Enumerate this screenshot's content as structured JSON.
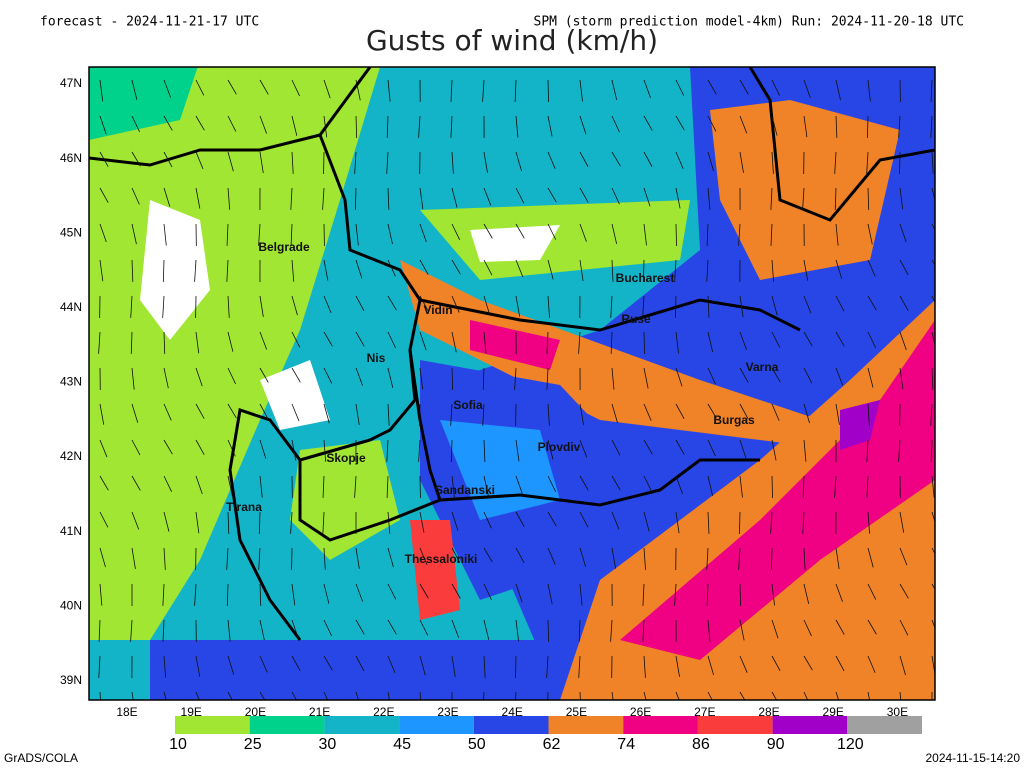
{
  "header": {
    "forecast": "forecast - 2024-11-21-17 UTC",
    "model": "SPM (storm prediction model-4km) Run: 2024-11-20-18 UTC",
    "title": "Gusts of wind (km/h)"
  },
  "map": {
    "lat_labels": [
      "47N",
      "46N",
      "45N",
      "44N",
      "43N",
      "42N",
      "41N",
      "40N",
      "39N"
    ],
    "lon_labels": [
      "18E",
      "19E",
      "20E",
      "21E",
      "22E",
      "23E",
      "24E",
      "25E",
      "26E",
      "27E",
      "28E",
      "29E",
      "30E"
    ],
    "cities": [
      "Belgrade",
      "Bucharest",
      "Vidin",
      "Ruse",
      "Nis",
      "Varna",
      "Sofia",
      "Burgas",
      "Plovdiv",
      "Skopje",
      "Sandanski",
      "Tirana",
      "Thessaloniki"
    ]
  },
  "legend": {
    "colors": [
      "#a0e632",
      "#00d28c",
      "#14b4c8",
      "#1e96ff",
      "#2846e6",
      "#f08228",
      "#f00082",
      "#fa3c3c",
      "#a000c8",
      "#a0a0a0"
    ],
    "labels": [
      10,
      25,
      30,
      45,
      50,
      62,
      74,
      86,
      90,
      120
    ]
  },
  "footer": {
    "left": "GrADS/COLA",
    "right": "2024-11-15-14:20"
  }
}
